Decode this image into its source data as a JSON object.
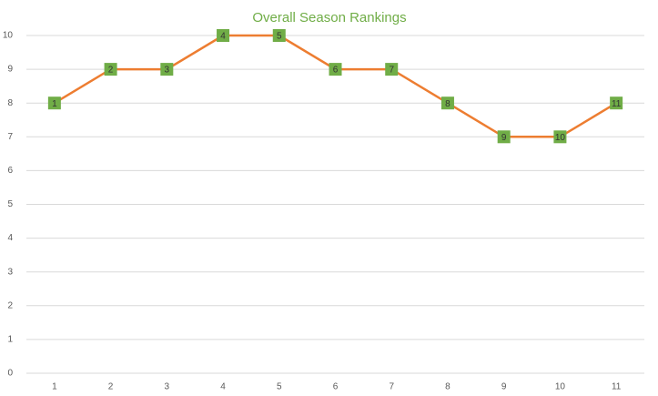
{
  "chart_data": {
    "type": "line",
    "title": "Overall Season Rankings",
    "x": [
      1,
      2,
      3,
      4,
      5,
      6,
      7,
      8,
      9,
      10,
      11
    ],
    "values": [
      8,
      9,
      9,
      10,
      10,
      9,
      9,
      8,
      7,
      7,
      8
    ],
    "color": "#ed7d31",
    "marker_color": "#70ad47",
    "xlim": [
      0.5,
      11.5
    ],
    "xticks": [
      1,
      2,
      3,
      4,
      5,
      6,
      7,
      8,
      9,
      10,
      11
    ],
    "ylim": [
      0,
      10
    ],
    "yticks": [
      0,
      1,
      2,
      3,
      4,
      5,
      6,
      7,
      8,
      9,
      10
    ],
    "grid": true
  }
}
